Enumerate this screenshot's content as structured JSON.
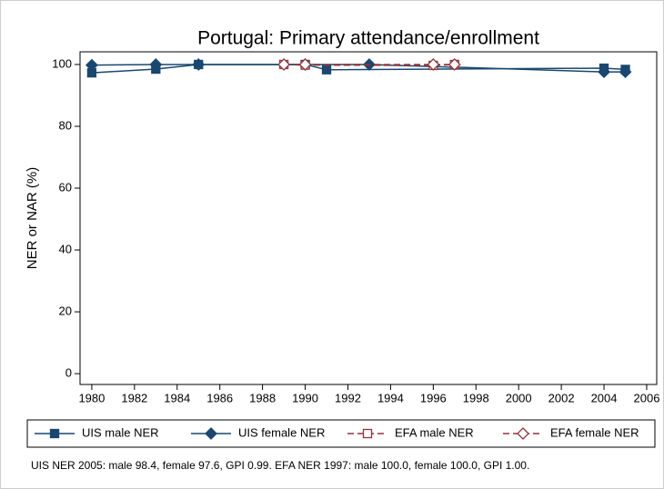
{
  "chart_data": {
    "type": "line",
    "title": "Portugal: Primary attendance/enrollment",
    "y_label": "NER or NAR (%)",
    "xlim": [
      1979.45,
      2006.47
    ],
    "xticks": [
      1980,
      1982,
      1984,
      1986,
      1988,
      1990,
      1992,
      1994,
      1996,
      1998,
      2000,
      2002,
      2004,
      2006
    ],
    "ylim": [
      -3.5,
      104.1
    ],
    "yticks": [
      0,
      20,
      40,
      60,
      80,
      100
    ],
    "grid": false,
    "series": [
      {
        "name": "UIS male NER",
        "color": "#1a476f",
        "marker": "square",
        "dashed": false,
        "hollow": false,
        "x": [
          1980,
          1983,
          1985,
          1990,
          1991,
          2004,
          2005
        ],
        "values": [
          97.3,
          98.5,
          100,
          100,
          98.3,
          98.8,
          98.4
        ]
      },
      {
        "name": "UIS female NER",
        "color": "#1a476f",
        "marker": "diamond",
        "dashed": false,
        "hollow": false,
        "x": [
          1980,
          1983,
          1985,
          1990,
          1993,
          2004,
          2005
        ],
        "values": [
          99.8,
          100,
          100,
          100,
          100,
          97.6,
          97.6
        ]
      },
      {
        "name": "EFA male NER",
        "color": "#90353b",
        "marker": "square",
        "dashed": true,
        "hollow": true,
        "x": [
          1989,
          1990,
          1996,
          1997
        ],
        "values": [
          100,
          99.8,
          99.7,
          100
        ]
      },
      {
        "name": "EFA female NER",
        "color": "#90353b",
        "marker": "diamond",
        "dashed": true,
        "hollow": true,
        "x": [
          1989,
          1990,
          1996,
          1997
        ],
        "values": [
          100,
          100,
          100,
          100
        ]
      }
    ],
    "note": "UIS NER 2005: male 98.4, female 97.6, GPI 0.99. EFA NER 1997: male 100.0, female 100.0, GPI 1.00."
  }
}
